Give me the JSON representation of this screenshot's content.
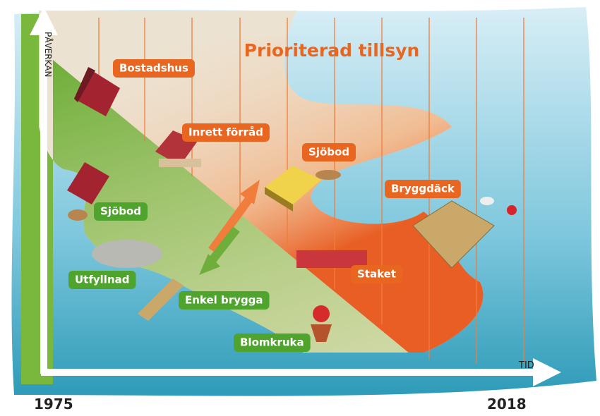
{
  "title": "Prioriterad tillsyn",
  "axes": {
    "y_label": "PÅVERKAN",
    "x_label": "TID",
    "start": "1975",
    "end": "2018"
  },
  "priority_labels": [
    "Bostadshus",
    "Inrett förråd",
    "Sjöbod",
    "Bryggdäck",
    "Staket"
  ],
  "other_labels": [
    "Sjöbod",
    "Utfyllnad",
    "Enkel brygga",
    "Blomkruka"
  ]
}
